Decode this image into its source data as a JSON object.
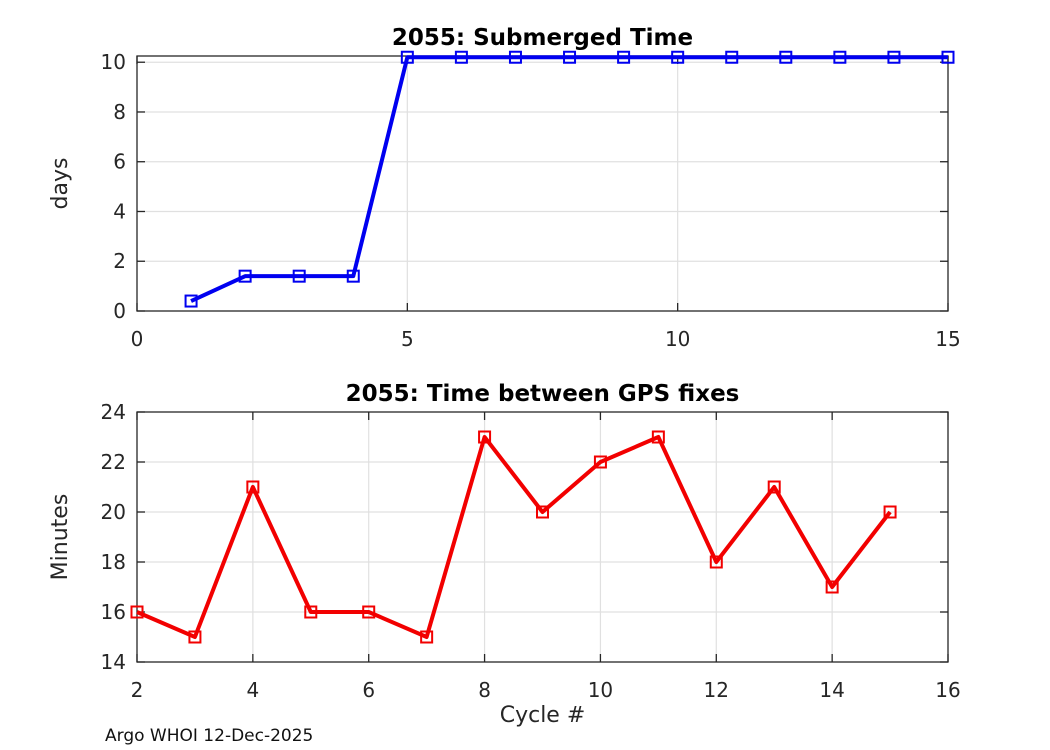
{
  "figure": {
    "background": "#FFFFFF",
    "footer_text": "Argo WHOI 12-Dec-2025"
  },
  "style": {
    "axis_color": "#262626",
    "grid_color": "#E0E0E0",
    "title_color": "#000000",
    "tick_label_color": "#262626",
    "plot_background": "#FFFFFF"
  },
  "chart_data": [
    {
      "type": "line",
      "title": "2055: Submerged Time",
      "xlabel": "",
      "ylabel": "days",
      "x": [
        1,
        2,
        3,
        4,
        5,
        6,
        7,
        8,
        9,
        10,
        11,
        12,
        13,
        14,
        15
      ],
      "y": [
        0.4,
        1.4,
        1.4,
        1.4,
        10.2,
        10.2,
        10.2,
        10.2,
        10.2,
        10.2,
        10.2,
        10.2,
        10.2,
        10.2,
        10.2
      ],
      "xlim": [
        0,
        15
      ],
      "ylim": [
        0,
        10.25
      ],
      "xticks": [
        0,
        5,
        10,
        15
      ],
      "yticks": [
        0,
        2,
        4,
        6,
        8,
        10
      ],
      "grid": true,
      "legend": "none",
      "line_color": "#0000F0",
      "line_width": 4,
      "marker": "open-square"
    },
    {
      "type": "line",
      "title": "2055: Time between GPS fixes",
      "xlabel": "Cycle #",
      "ylabel": "Minutes",
      "x": [
        2,
        3,
        4,
        5,
        6,
        7,
        8,
        9,
        10,
        11,
        12,
        13,
        14,
        15
      ],
      "y": [
        16,
        15,
        21,
        16,
        16,
        15,
        23,
        20,
        22,
        23,
        18,
        21,
        17,
        20
      ],
      "xlim": [
        2,
        16
      ],
      "ylim": [
        14,
        24
      ],
      "xticks": [
        2,
        4,
        6,
        8,
        10,
        12,
        14,
        16
      ],
      "yticks": [
        14,
        16,
        18,
        20,
        22,
        24
      ],
      "grid": true,
      "legend": "none",
      "line_color": "#F20000",
      "line_width": 4,
      "marker": "open-square"
    }
  ]
}
